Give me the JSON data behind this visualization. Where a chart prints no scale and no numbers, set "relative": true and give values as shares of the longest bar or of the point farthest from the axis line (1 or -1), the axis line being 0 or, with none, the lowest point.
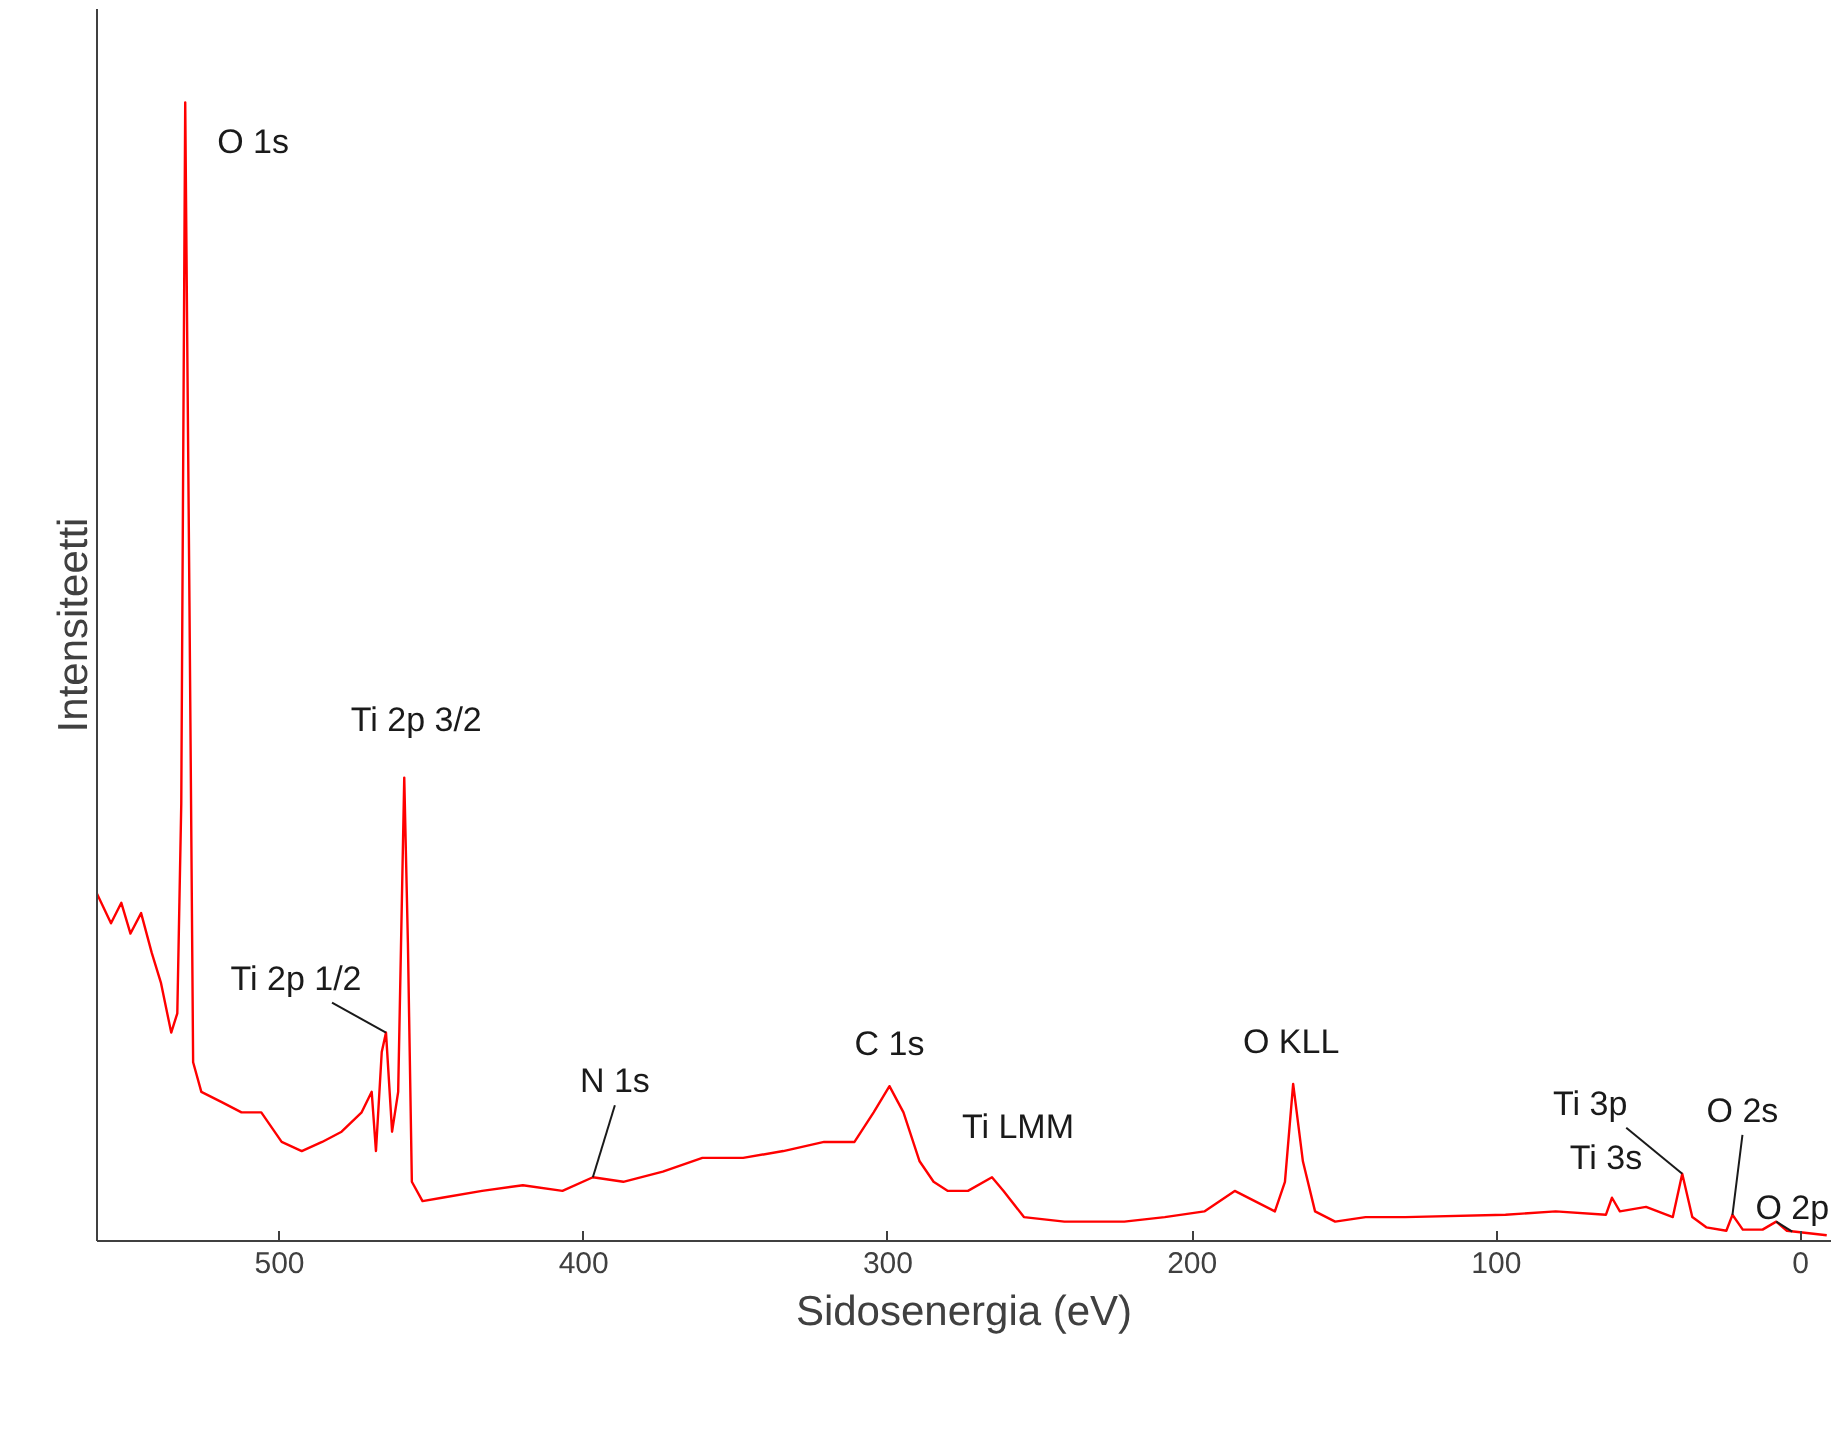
{
  "chart_data": {
    "type": "line",
    "relative": true,
    "xlabel": "Sidosenergia (eV)",
    "ylabel": "Intensiteetti",
    "xlim": [
      560,
      -10
    ],
    "xticks": [
      500,
      400,
      300,
      200,
      100,
      0
    ],
    "grid": false,
    "marker": "none",
    "line_style": "solid",
    "tick_labels": "x",
    "x": [
      560,
      555.4,
      552,
      549,
      545.5,
      542,
      539,
      535.6,
      533.6,
      532.3,
      531,
      529.6,
      528.4,
      525.7,
      519,
      512.5,
      506,
      499.3,
      492.7,
      486,
      479.6,
      473,
      469.7,
      468.3,
      466.4,
      465,
      463,
      461,
      459,
      457.8,
      456.5,
      453,
      446.6,
      433.4,
      420,
      407,
      397,
      387,
      374,
      361,
      347.6,
      334.4,
      321,
      311,
      304.7,
      299.5,
      294.9,
      289.6,
      285,
      280.3,
      273.7,
      265.8,
      262,
      255.3,
      242,
      222.3,
      209,
      196,
      186,
      179.4,
      172.8,
      169.5,
      166.8,
      163.6,
      159.6,
      153,
      143,
      130,
      97,
      80.5,
      64,
      62,
      59.4,
      50.8,
      42,
      38.9,
      35.6,
      31,
      24.4,
      22.4,
      19,
      12.5,
      8,
      4.5,
      -8.6
    ],
    "series": [
      {
        "color": "#ff0000",
        "values": [
          0.305,
          0.279,
          0.297,
          0.27,
          0.288,
          0.253,
          0.227,
          0.183,
          0.2,
          0.384,
          1.0,
          0.558,
          0.157,
          0.131,
          0.122,
          0.113,
          0.113,
          0.087,
          0.079,
          0.087,
          0.096,
          0.113,
          0.131,
          0.079,
          0.166,
          0.183,
          0.096,
          0.131,
          0.407,
          0.262,
          0.052,
          0.035,
          0.038,
          0.044,
          0.049,
          0.044,
          0.056,
          0.052,
          0.061,
          0.073,
          0.073,
          0.079,
          0.087,
          0.087,
          0.113,
          0.136,
          0.113,
          0.07,
          0.052,
          0.044,
          0.044,
          0.056,
          0.044,
          0.021,
          0.017,
          0.017,
          0.021,
          0.026,
          0.044,
          0.035,
          0.026,
          0.052,
          0.138,
          0.07,
          0.026,
          0.017,
          0.021,
          0.021,
          0.023,
          0.026,
          0.023,
          0.038,
          0.026,
          0.03,
          0.021,
          0.059,
          0.021,
          0.012,
          0.009,
          0.023,
          0.01,
          0.01,
          0.017,
          0.009,
          0.005
        ]
      }
    ],
    "annotations": [
      {
        "text": "O 1s",
        "x": 531,
        "y": 1.0
      },
      {
        "text": "Ti 2p 3/2",
        "x": 459,
        "y": 0.407
      },
      {
        "text": "Ti 2p 1/2",
        "x": 465,
        "y": 0.183
      },
      {
        "text": "N 1s",
        "x": 397,
        "y": 0.056
      },
      {
        "text": "C 1s",
        "x": 299.5,
        "y": 0.136
      },
      {
        "text": "Ti LMM",
        "x": 265.8,
        "y": 0.056
      },
      {
        "text": "O KLL",
        "x": 166.8,
        "y": 0.138
      },
      {
        "text": "Ti 3s",
        "x": 62,
        "y": 0.038
      },
      {
        "text": "Ti 3p",
        "x": 38.9,
        "y": 0.059
      },
      {
        "text": "O 2s",
        "x": 22.4,
        "y": 0.023
      },
      {
        "text": "O 2p",
        "x": 8,
        "y": 0.017
      }
    ]
  }
}
